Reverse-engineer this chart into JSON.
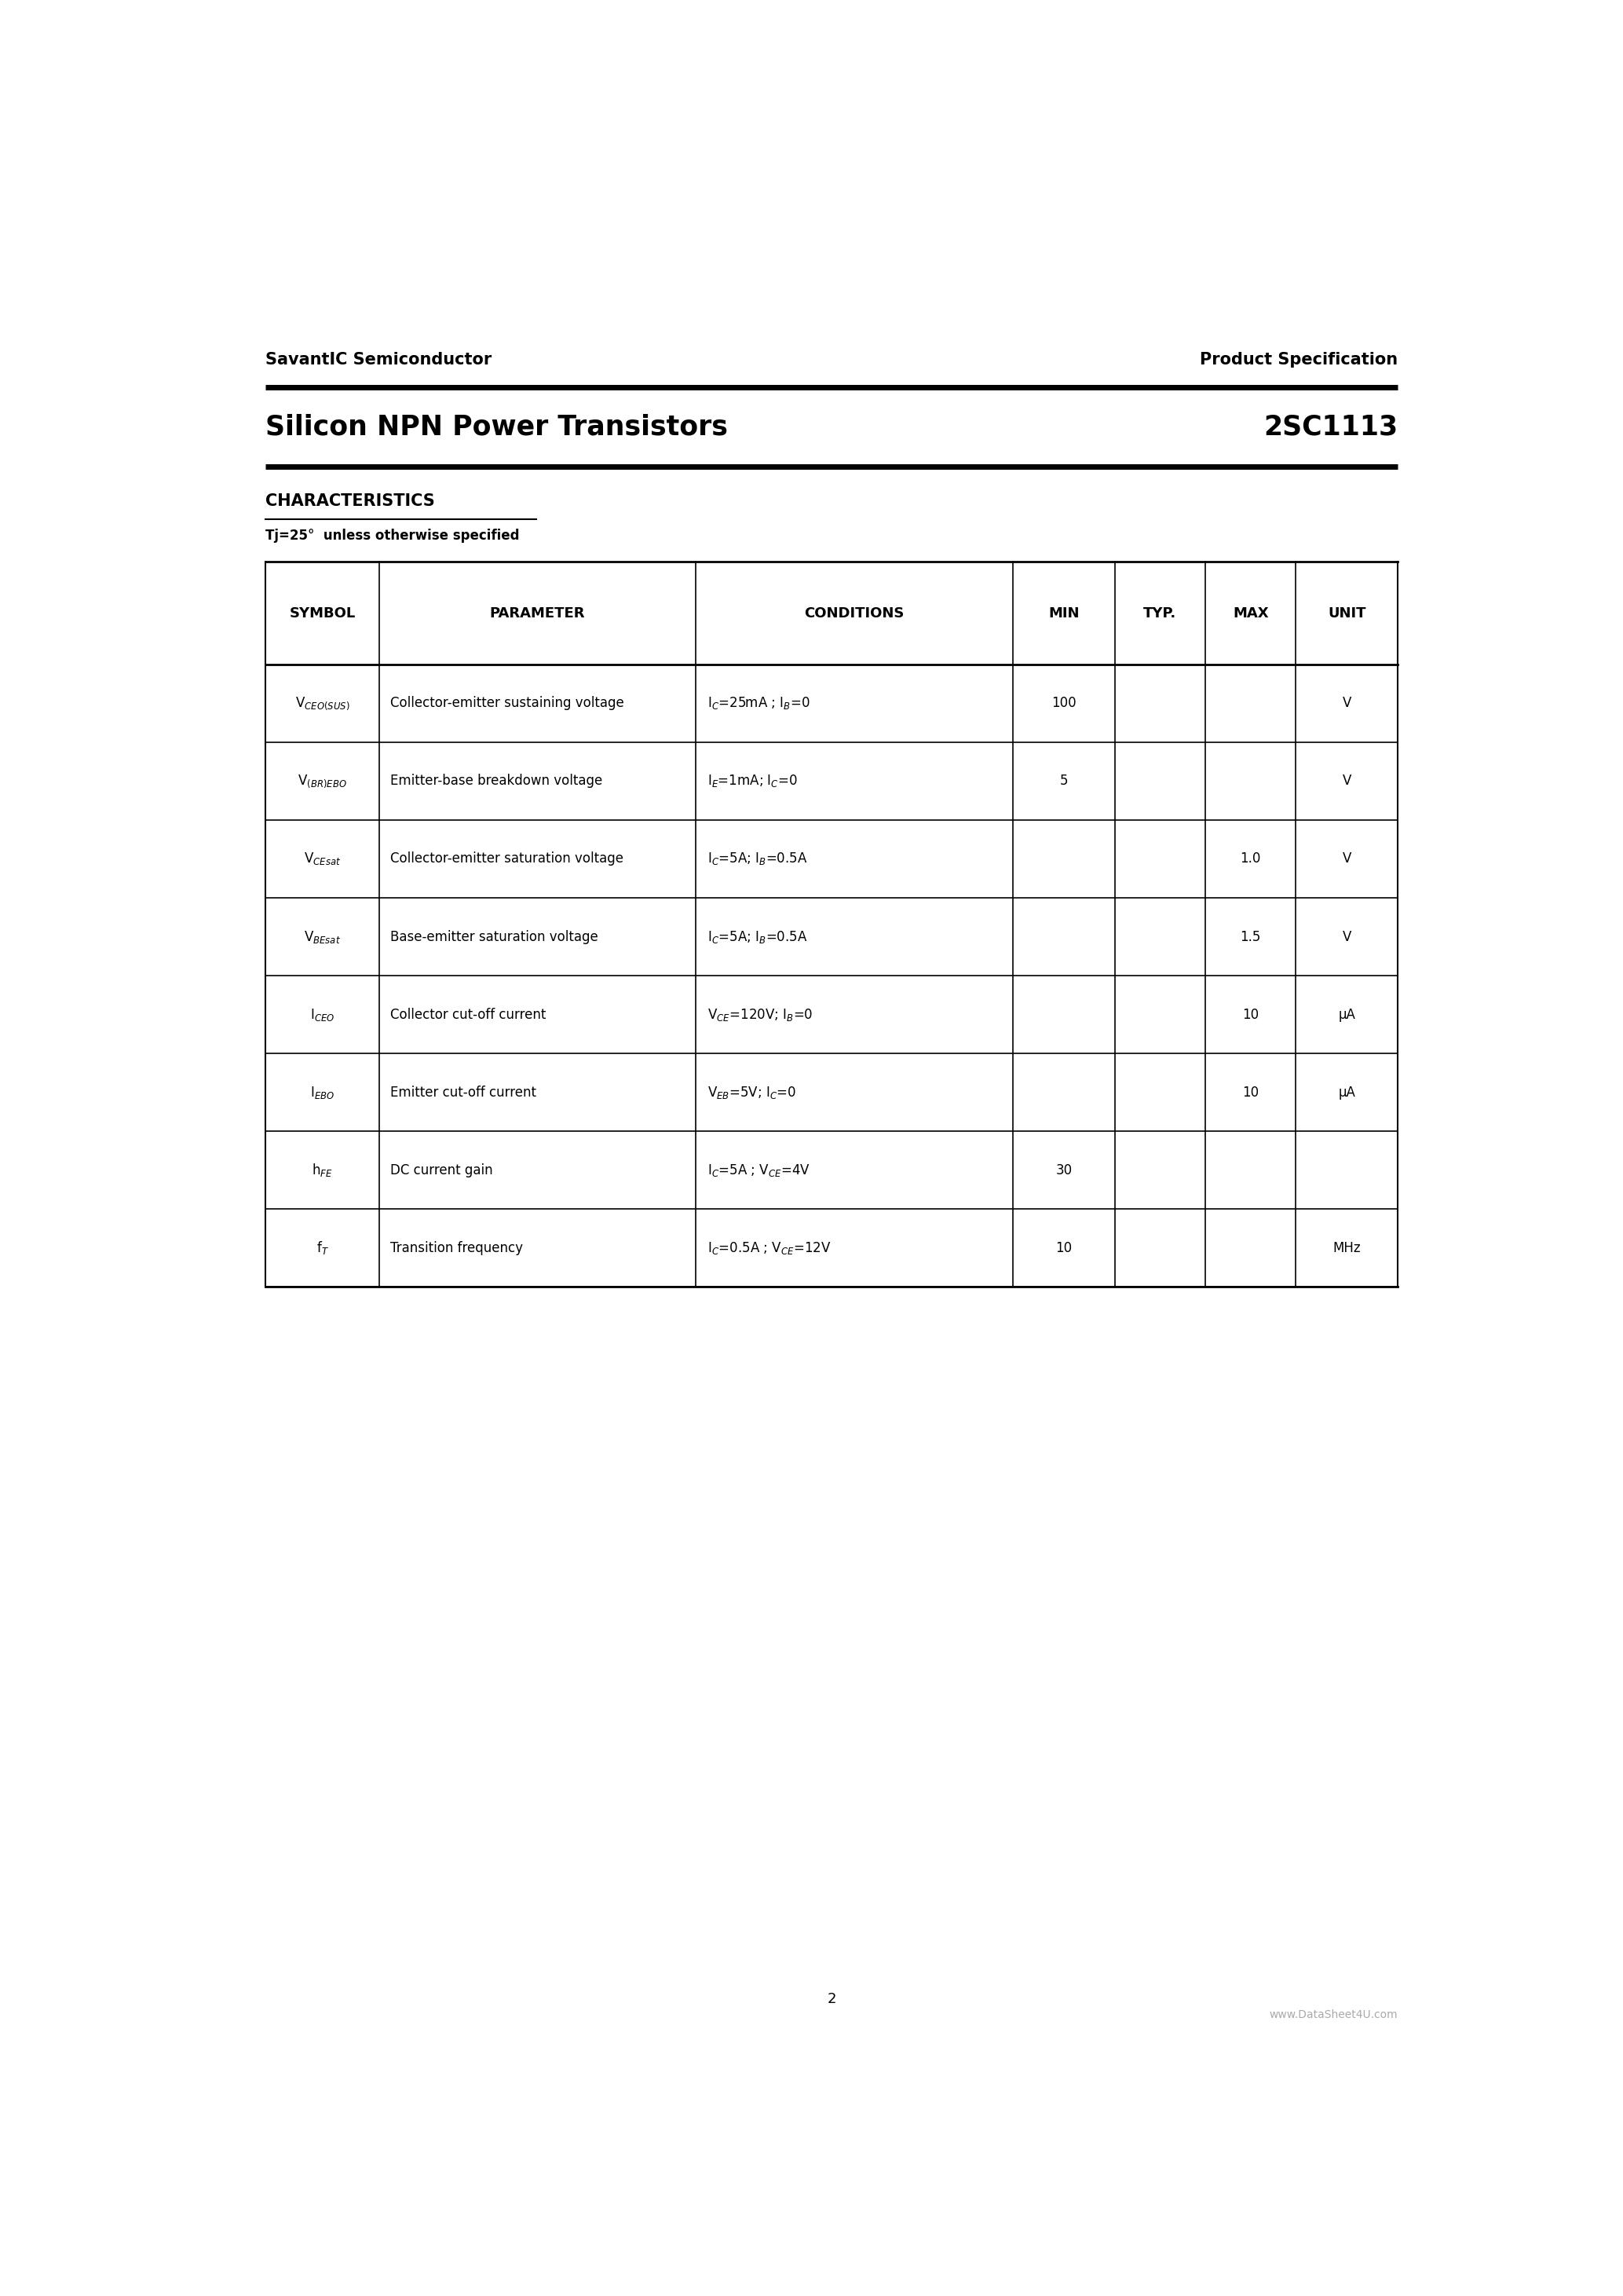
{
  "page_bg": "#ffffff",
  "header_left": "SavantIC Semiconductor",
  "header_right": "Product Specification",
  "title_left": "Silicon NPN Power Transistors",
  "title_right": "2SC1113",
  "section_title": "CHARACTERISTICS",
  "subtitle": "Tj=25°  unless otherwise specified",
  "col_headers": [
    "SYMBOL",
    "PARAMETER",
    "CONDITIONS",
    "MIN",
    "TYP.",
    "MAX",
    "UNIT"
  ],
  "col_props": [
    0.1,
    0.28,
    0.28,
    0.09,
    0.08,
    0.08,
    0.09
  ],
  "rows": [
    {
      "symbol": "V$_{CEO(SUS)}$",
      "parameter": "Collector-emitter sustaining voltage",
      "conditions": "I$_{C}$=25mA ; I$_{B}$=0",
      "min": "100",
      "typ": "",
      "max": "",
      "unit": "V"
    },
    {
      "symbol": "V$_{(BR)EBO}$",
      "parameter": "Emitter-base breakdown voltage",
      "conditions": "I$_{E}$=1mA; I$_{C}$=0",
      "min": "5",
      "typ": "",
      "max": "",
      "unit": "V"
    },
    {
      "symbol": "V$_{CEsat}$",
      "parameter": "Collector-emitter saturation voltage",
      "conditions": "I$_{C}$=5A; I$_{B}$=0.5A",
      "min": "",
      "typ": "",
      "max": "1.0",
      "unit": "V"
    },
    {
      "symbol": "V$_{BEsat}$",
      "parameter": "Base-emitter saturation voltage",
      "conditions": "I$_{C}$=5A; I$_{B}$=0.5A",
      "min": "",
      "typ": "",
      "max": "1.5",
      "unit": "V"
    },
    {
      "symbol": "I$_{CEO}$",
      "parameter": "Collector cut-off current",
      "conditions": "V$_{CE}$=120V; I$_{B}$=0",
      "min": "",
      "typ": "",
      "max": "10",
      "unit": "μA"
    },
    {
      "symbol": "I$_{EBO}$",
      "parameter": "Emitter cut-off current",
      "conditions": "V$_{EB}$=5V; I$_{C}$=0",
      "min": "",
      "typ": "",
      "max": "10",
      "unit": "μA"
    },
    {
      "symbol": "h$_{FE}$",
      "parameter": "DC current gain",
      "conditions": "I$_{C}$=5A ; V$_{CE}$=4V",
      "min": "30",
      "typ": "",
      "max": "",
      "unit": ""
    },
    {
      "symbol": "f$_{T}$",
      "parameter": "Transition frequency",
      "conditions": "I$_{C}$=0.5A ; V$_{CE}$=12V",
      "min": "10",
      "typ": "",
      "max": "",
      "unit": "MHz"
    }
  ],
  "footer_page": "2",
  "footer_url": "www.DataSheet4U.com"
}
